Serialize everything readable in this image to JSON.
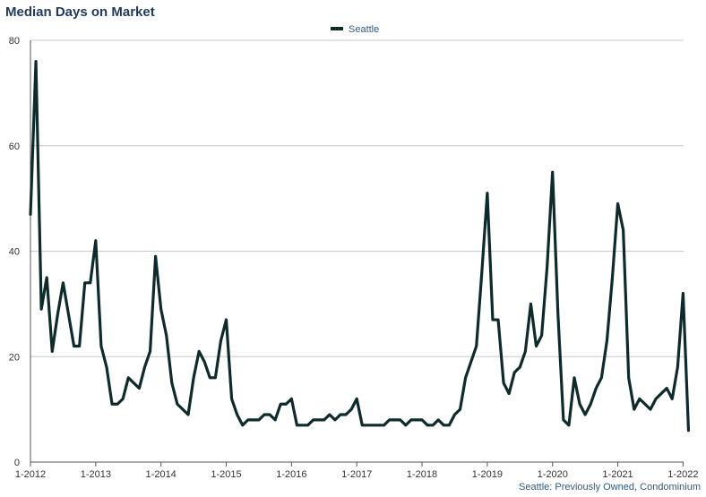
{
  "title": "Median Days on Market",
  "footnote": "Seattle: Previously Owned, Condominium",
  "colors": {
    "series": "#0f2a2a",
    "grid": "#c8c8c8",
    "title": "#1f3a5a",
    "note": "#2f5b86"
  },
  "chart_data": {
    "type": "line",
    "title": "Median Days on Market",
    "xlabel": "",
    "ylabel": "",
    "ylim": [
      0,
      80
    ],
    "yticks": [
      0,
      20,
      40,
      60,
      80
    ],
    "xticks": [
      "1-2012",
      "1-2013",
      "1-2014",
      "1-2015",
      "1-2016",
      "1-2017",
      "1-2018",
      "1-2019",
      "1-2020",
      "1-2021",
      "1-2022"
    ],
    "grid": "horizontal",
    "legend": "top-center",
    "series": [
      {
        "name": "Seattle",
        "start": "1-2012",
        "frequency": "monthly",
        "values": [
          47,
          76,
          29,
          35,
          21,
          28,
          34,
          28,
          22,
          22,
          34,
          34,
          42,
          22,
          18,
          11,
          11,
          12,
          16,
          15,
          14,
          18,
          21,
          39,
          29,
          24,
          15,
          11,
          10,
          9,
          16,
          21,
          19,
          16,
          16,
          23,
          27,
          12,
          9,
          7,
          8,
          8,
          8,
          9,
          9,
          8,
          11,
          11,
          12,
          7,
          7,
          7,
          8,
          8,
          8,
          9,
          8,
          9,
          9,
          10,
          12,
          7,
          7,
          7,
          7,
          7,
          8,
          8,
          8,
          7,
          8,
          8,
          8,
          7,
          7,
          8,
          7,
          7,
          9,
          10,
          16,
          19,
          22,
          36,
          51,
          27,
          27,
          15,
          13,
          17,
          18,
          21,
          30,
          22,
          24,
          37,
          55,
          28,
          8,
          7,
          16,
          11,
          9,
          11,
          14,
          16,
          23,
          35,
          49,
          44,
          16,
          10,
          12,
          11,
          10,
          12,
          13,
          14,
          12,
          18,
          32,
          6
        ]
      }
    ]
  }
}
